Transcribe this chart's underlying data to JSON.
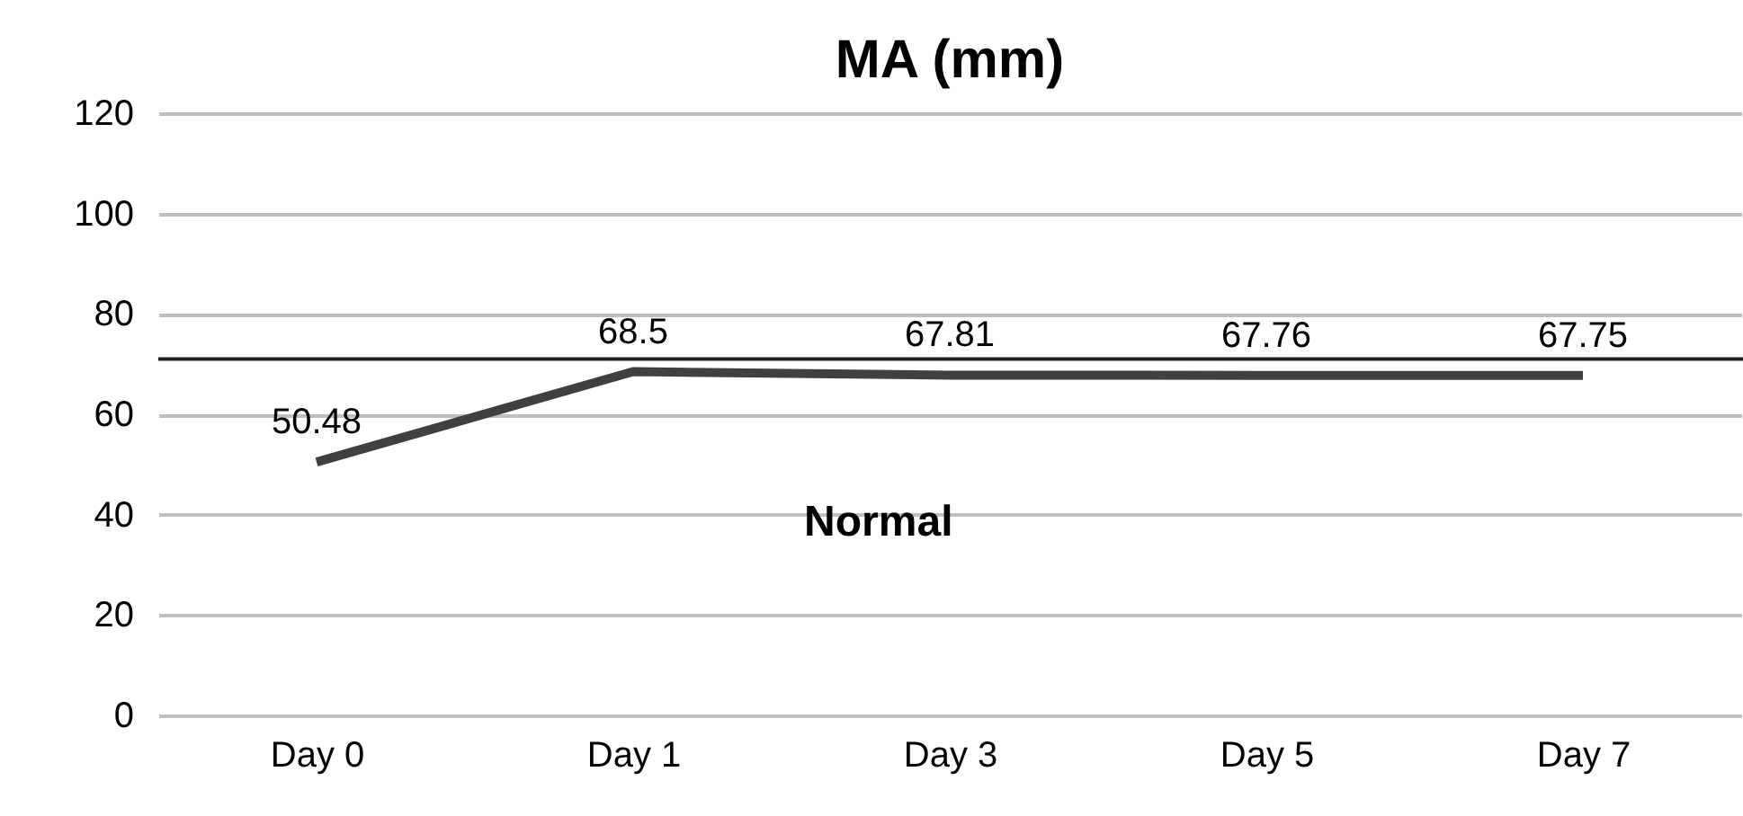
{
  "chart_data": {
    "type": "line",
    "title": "MA (mm)",
    "categories": [
      "Day 0",
      "Day 1",
      "Day 3",
      "Day 5",
      "Day 7"
    ],
    "series": [
      {
        "color": "#404040",
        "values": [
          50.48,
          68.5,
          67.81,
          67.76,
          67.75
        ]
      }
    ],
    "data_labels": true,
    "ylim": [
      0,
      120
    ],
    "yticks": [
      0,
      20,
      40,
      60,
      80,
      100,
      120
    ],
    "grid": "y",
    "marker": "none",
    "line_style": "solid",
    "ref_lines": [
      {
        "axis": "y",
        "value": 71,
        "color": "#222222"
      }
    ],
    "annotations": [
      "Normal"
    ]
  }
}
